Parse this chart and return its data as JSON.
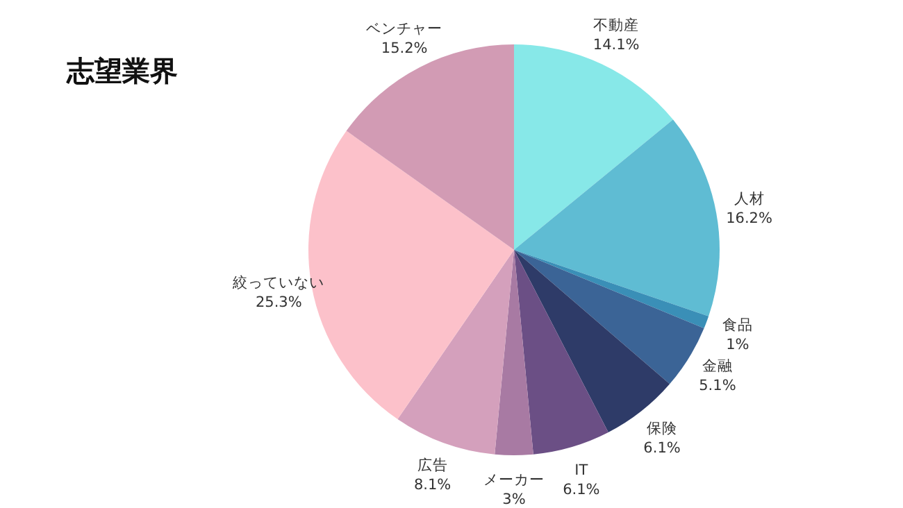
{
  "chart_data": {
    "type": "pie",
    "title": "志望業界",
    "categories": [
      "不動産",
      "人材",
      "食品",
      "金融",
      "保険",
      "IT",
      "メーカー",
      "広告",
      "絞っていない",
      "ベンチャー"
    ],
    "values": [
      14.1,
      16.2,
      1,
      5.1,
      6.1,
      6.1,
      3,
      8.1,
      25.3,
      15.2
    ],
    "colors": [
      "#87e8e8",
      "#5fbcd3",
      "#3a8fb7",
      "#3b6496",
      "#2e3b68",
      "#6b4f85",
      "#a87aa3",
      "#d4a0bc",
      "#fcc1ca",
      "#d29bb4"
    ],
    "value_labels": [
      "14.1%",
      "16.2%",
      "1%",
      "5.1%",
      "6.1%",
      "6.1%",
      "3%",
      "8.1%",
      "25.3%",
      "15.2%"
    ]
  }
}
